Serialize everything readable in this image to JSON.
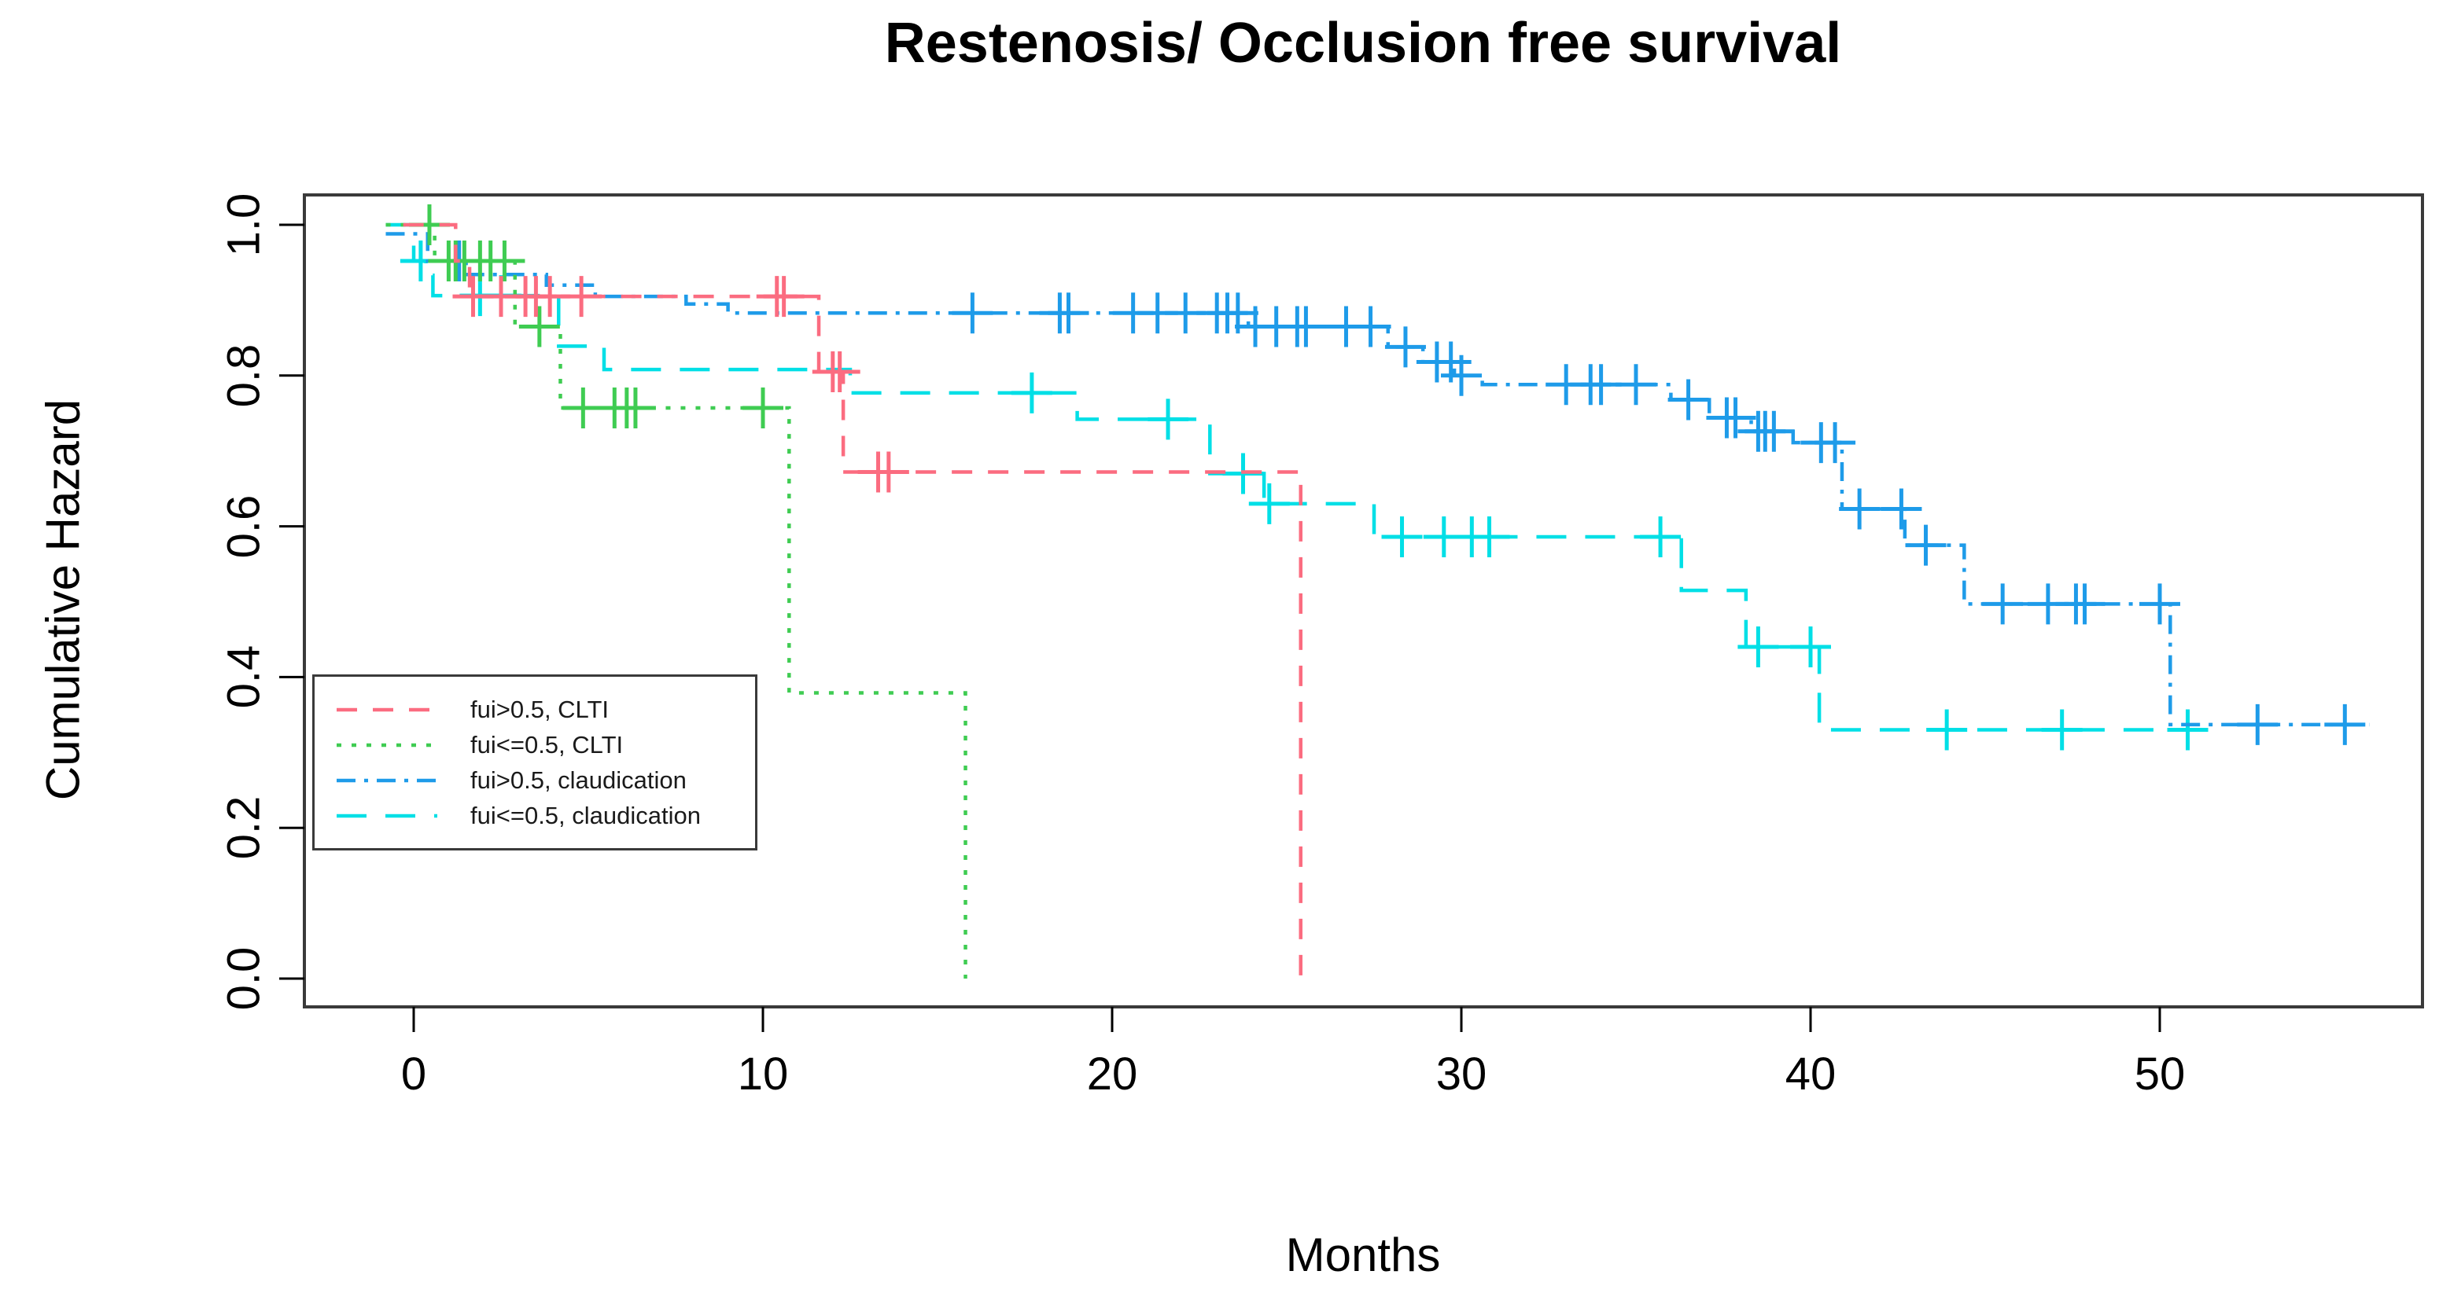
{
  "title": "Restenosis/ Occlusion free survival",
  "chart_data": {
    "type": "line",
    "subtype": "kaplan-meier-step",
    "title": "Restenosis/ Occlusion free survival",
    "xlabel": "Months",
    "ylabel": "Cumulative Hazard",
    "xlim": [
      -2.2,
      57.6
    ],
    "ylim": [
      -0.02,
      1.04
    ],
    "grid": false,
    "legend_position": "middle-left",
    "frame_color": "#3a3a3a",
    "xticks": [
      {
        "value": 0,
        "label": "0"
      },
      {
        "value": 10,
        "label": "10"
      },
      {
        "value": 20,
        "label": "20"
      },
      {
        "value": 30,
        "label": "30"
      },
      {
        "value": 40,
        "label": "40"
      },
      {
        "value": 50,
        "label": "50"
      }
    ],
    "yticks": [
      {
        "value": 0.0,
        "label": "0.0"
      },
      {
        "value": 0.2,
        "label": "0.2"
      },
      {
        "value": 0.4,
        "label": "0.4"
      },
      {
        "value": 0.6,
        "label": "0.6"
      },
      {
        "value": 0.8,
        "label": "0.8"
      },
      {
        "value": 1.0,
        "label": "1.0"
      }
    ],
    "series": [
      {
        "name": "fui<=0.5, claudication",
        "color": "#00dfe6",
        "dash": "longdash",
        "steps": [
          [
            -0.8,
            1.0
          ],
          [
            0.0,
            0.952
          ],
          [
            0.35,
            0.933
          ],
          [
            0.55,
            0.906
          ],
          [
            4.15,
            0.839
          ],
          [
            5.45,
            0.808
          ],
          [
            12.5,
            0.777
          ],
          [
            19.0,
            0.742
          ],
          [
            22.8,
            0.67
          ],
          [
            24.35,
            0.63
          ],
          [
            27.5,
            0.586
          ],
          [
            36.3,
            0.515
          ],
          [
            38.15,
            0.44
          ],
          [
            40.25,
            0.33
          ]
        ],
        "end": 50.9,
        "censors": [
          [
            0.2,
            0.952
          ],
          [
            1.9,
            0.906
          ],
          [
            2.5,
            0.906
          ],
          [
            17.7,
            0.777
          ],
          [
            21.6,
            0.742
          ],
          [
            23.75,
            0.67
          ],
          [
            24.5,
            0.63
          ],
          [
            28.3,
            0.586
          ],
          [
            29.5,
            0.586
          ],
          [
            30.3,
            0.586
          ],
          [
            30.8,
            0.586
          ],
          [
            35.7,
            0.586
          ],
          [
            38.5,
            0.44
          ],
          [
            40.0,
            0.44
          ],
          [
            43.9,
            0.33
          ],
          [
            47.2,
            0.33
          ],
          [
            50.8,
            0.33
          ]
        ]
      },
      {
        "name": "fui>0.5, claudication",
        "color": "#1e9be9",
        "dash": "dashdot",
        "steps": [
          [
            -0.8,
            0.988
          ],
          [
            0.4,
            0.952
          ],
          [
            1.5,
            0.934
          ],
          [
            3.8,
            0.92
          ],
          [
            5.2,
            0.905
          ],
          [
            7.8,
            0.895
          ],
          [
            9.0,
            0.883
          ],
          [
            23.9,
            0.865
          ],
          [
            27.9,
            0.838
          ],
          [
            28.9,
            0.818
          ],
          [
            29.8,
            0.8
          ],
          [
            30.6,
            0.788
          ],
          [
            36.0,
            0.768
          ],
          [
            37.1,
            0.744
          ],
          [
            38.3,
            0.726
          ],
          [
            39.5,
            0.711
          ],
          [
            40.9,
            0.623
          ],
          [
            42.7,
            0.575
          ],
          [
            44.4,
            0.497
          ],
          [
            50.3,
            0.337
          ]
        ],
        "end": 56.0,
        "censors": [
          [
            1.3,
            0.952
          ],
          [
            16.0,
            0.883
          ],
          [
            18.5,
            0.883
          ],
          [
            18.75,
            0.883
          ],
          [
            20.6,
            0.883
          ],
          [
            21.3,
            0.883
          ],
          [
            22.1,
            0.883
          ],
          [
            23.0,
            0.883
          ],
          [
            23.3,
            0.883
          ],
          [
            23.6,
            0.883
          ],
          [
            24.1,
            0.865
          ],
          [
            24.7,
            0.865
          ],
          [
            25.3,
            0.865
          ],
          [
            25.55,
            0.865
          ],
          [
            26.7,
            0.865
          ],
          [
            27.4,
            0.865
          ],
          [
            28.4,
            0.838
          ],
          [
            29.3,
            0.818
          ],
          [
            29.7,
            0.818
          ],
          [
            30.0,
            0.8
          ],
          [
            33.0,
            0.788
          ],
          [
            33.7,
            0.788
          ],
          [
            34.0,
            0.788
          ],
          [
            35.0,
            0.788
          ],
          [
            36.5,
            0.768
          ],
          [
            37.6,
            0.744
          ],
          [
            37.85,
            0.744
          ],
          [
            38.5,
            0.726
          ],
          [
            38.7,
            0.726
          ],
          [
            38.95,
            0.726
          ],
          [
            40.3,
            0.711
          ],
          [
            40.7,
            0.711
          ],
          [
            41.4,
            0.623
          ],
          [
            42.6,
            0.623
          ],
          [
            43.3,
            0.575
          ],
          [
            45.5,
            0.497
          ],
          [
            46.8,
            0.497
          ],
          [
            47.6,
            0.497
          ],
          [
            47.85,
            0.497
          ],
          [
            50.0,
            0.497
          ],
          [
            52.8,
            0.337
          ],
          [
            55.3,
            0.337
          ]
        ]
      },
      {
        "name": "fui<=0.5, CLTI",
        "color": "#3fcc52",
        "dash": "dotted",
        "steps": [
          [
            -0.8,
            1.0
          ],
          [
            0.6,
            0.952
          ],
          [
            2.9,
            0.865
          ],
          [
            4.2,
            0.757
          ],
          [
            10.75,
            0.379
          ],
          [
            15.8,
            0.0
          ]
        ],
        "end": 15.8,
        "censors": [
          [
            0.45,
            1.0
          ],
          [
            1.0,
            0.952
          ],
          [
            1.2,
            0.952
          ],
          [
            1.45,
            0.952
          ],
          [
            1.9,
            0.952
          ],
          [
            2.2,
            0.952
          ],
          [
            2.6,
            0.952
          ],
          [
            3.6,
            0.865
          ],
          [
            4.85,
            0.757
          ],
          [
            5.75,
            0.757
          ],
          [
            6.1,
            0.757
          ],
          [
            6.35,
            0.757
          ],
          [
            10.0,
            0.757
          ]
        ]
      },
      {
        "name": "fui>0.5, CLTI",
        "color": "#fb6c80",
        "dash": "dashed",
        "steps": [
          [
            -0.3,
            1.0
          ],
          [
            1.2,
            0.952
          ],
          [
            1.6,
            0.905
          ],
          [
            11.6,
            0.805
          ],
          [
            12.3,
            0.672
          ],
          [
            25.4,
            0.0
          ]
        ],
        "end": 25.4,
        "censors": [
          [
            1.7,
            0.905
          ],
          [
            2.5,
            0.905
          ],
          [
            3.2,
            0.905
          ],
          [
            3.5,
            0.905
          ],
          [
            3.9,
            0.905
          ],
          [
            4.8,
            0.905
          ],
          [
            10.4,
            0.905
          ],
          [
            10.6,
            0.905
          ],
          [
            12.0,
            0.805
          ],
          [
            12.2,
            0.805
          ],
          [
            13.3,
            0.672
          ],
          [
            13.6,
            0.672
          ]
        ]
      }
    ],
    "legend": [
      {
        "label": "fui>0.5, CLTI",
        "color": "#fb6c80",
        "dash": "dashed"
      },
      {
        "label": "fui<=0.5, CLTI",
        "color": "#3fcc52",
        "dash": "dotted"
      },
      {
        "label": "fui>0.5, claudication",
        "color": "#1e9be9",
        "dash": "dashdot"
      },
      {
        "label": "fui<=0.5, claudication",
        "color": "#00dfe6",
        "dash": "longdash"
      }
    ]
  }
}
